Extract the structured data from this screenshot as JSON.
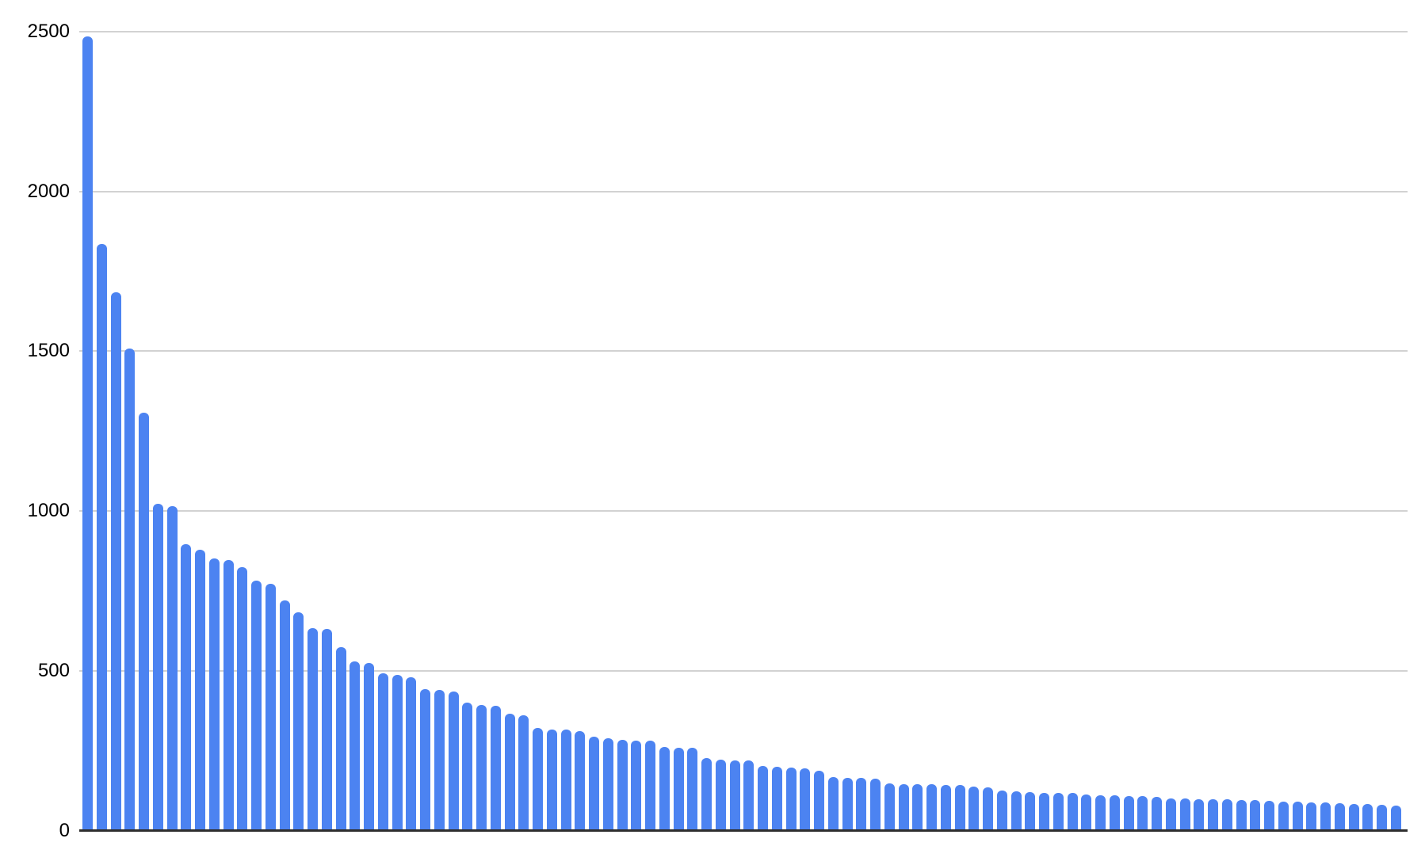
{
  "chart_data": {
    "type": "bar",
    "title": "",
    "xlabel": "",
    "ylabel": "",
    "x_tick_labels": [],
    "y_ticks": [
      0,
      500,
      1000,
      1500,
      2000,
      2500
    ],
    "ylim": [
      0,
      2500
    ],
    "grid": true,
    "legend": false,
    "bar_color": "#4c83f1",
    "gridline_color": "#d2d2d2",
    "axis_line_color": "#2e2e2e",
    "label_color": "#000000",
    "background_color": "#ffffff",
    "values": [
      2486,
      1835,
      1684,
      1509,
      1307,
      1022,
      1016,
      895,
      880,
      851,
      846,
      824,
      782,
      772,
      719,
      682,
      634,
      630,
      574,
      529,
      525,
      492,
      488,
      479,
      442,
      441,
      434,
      401,
      392,
      390,
      366,
      361,
      320,
      317,
      315,
      310,
      293,
      290,
      284,
      282,
      281,
      262,
      259,
      258,
      228,
      221,
      220,
      220,
      203,
      199,
      196,
      195,
      187,
      167,
      165,
      164,
      163,
      147,
      145,
      145,
      144,
      143,
      142,
      137,
      136,
      124,
      122,
      120,
      119,
      119,
      118,
      112,
      111,
      110,
      109,
      107,
      106,
      100,
      100,
      99,
      99,
      98,
      96,
      95,
      92,
      91,
      90,
      88,
      87,
      85,
      84,
      82,
      80,
      79
    ]
  }
}
